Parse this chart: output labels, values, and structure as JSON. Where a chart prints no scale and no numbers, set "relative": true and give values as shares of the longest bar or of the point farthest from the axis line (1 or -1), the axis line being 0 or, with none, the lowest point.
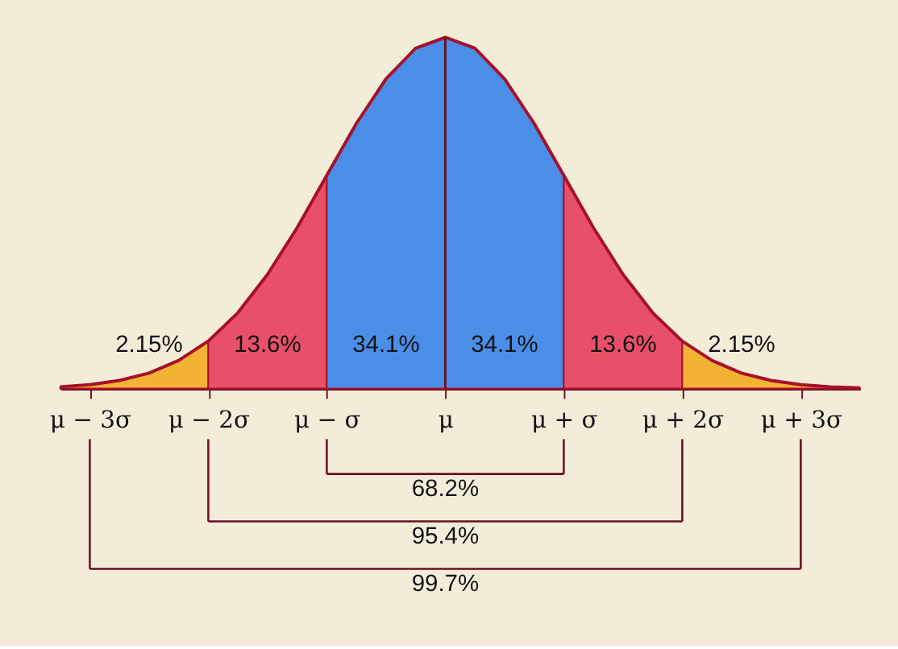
{
  "chart_data": {
    "type": "area",
    "relative": true,
    "xlim": [
      -3.25,
      3.5
    ],
    "xticks": [
      {
        "value": -3,
        "label": "μ − 3σ"
      },
      {
        "value": -2,
        "label": "μ − 2σ"
      },
      {
        "value": -1,
        "label": "μ − σ"
      },
      {
        "value": 0,
        "label": "μ"
      },
      {
        "value": 1,
        "label": "μ + σ"
      },
      {
        "value": 2,
        "label": "μ + 2σ"
      },
      {
        "value": 3,
        "label": "μ + 3σ"
      }
    ],
    "series": [
      {
        "color": "#f2b234",
        "x": [
          -3.25,
          -3,
          -2.75,
          -2.5,
          -2.25,
          -2
        ],
        "values": [
          0.005,
          0.011,
          0.023,
          0.044,
          0.08,
          0.135
        ]
      },
      {
        "color": "#e8506a",
        "x": [
          -2,
          -1.75,
          -1.5,
          -1.25,
          -1
        ],
        "values": [
          0.135,
          0.216,
          0.325,
          0.458,
          0.607
        ]
      },
      {
        "color": "#4a8ee8",
        "x": [
          -1,
          -0.75,
          -0.5,
          -0.25,
          0,
          0.25,
          0.5,
          0.75,
          1
        ],
        "values": [
          0.607,
          0.755,
          0.882,
          0.969,
          1,
          0.969,
          0.882,
          0.755,
          0.607
        ]
      },
      {
        "color": "#e8506a",
        "x": [
          1,
          1.25,
          1.5,
          1.75,
          2
        ],
        "values": [
          0.607,
          0.458,
          0.325,
          0.216,
          0.135
        ]
      },
      {
        "color": "#f2b234",
        "x": [
          2,
          2.25,
          2.5,
          2.75,
          3,
          3.25,
          3.5
        ],
        "values": [
          0.135,
          0.08,
          0.044,
          0.023,
          0.011,
          0.005,
          0.002
        ]
      },
      {
        "type": "line",
        "color": "#a8102a",
        "x": [
          -3.25,
          -3,
          -2.75,
          -2.5,
          -2.25,
          -2,
          -1.75,
          -1.5,
          -1.25,
          -1,
          -0.75,
          -0.5,
          -0.25,
          0,
          0.25,
          0.5,
          0.75,
          1,
          1.25,
          1.5,
          1.75,
          2,
          2.25,
          2.5,
          2.75,
          3,
          3.25,
          3.5
        ],
        "values": [
          0.005,
          0.011,
          0.023,
          0.044,
          0.08,
          0.135,
          0.216,
          0.325,
          0.458,
          0.607,
          0.755,
          0.882,
          0.969,
          1,
          0.969,
          0.882,
          0.755,
          0.607,
          0.458,
          0.325,
          0.216,
          0.135,
          0.08,
          0.044,
          0.023,
          0.011,
          0.005,
          0.002
        ]
      }
    ],
    "ref_lines": [
      {
        "axis": "x",
        "value": 0,
        "color": "#6a1020"
      }
    ],
    "annotations": [
      "2.15%",
      "13.6%",
      "34.1%",
      "34.1%",
      "13.6%",
      "2.15%",
      "68.2%",
      "95.4%",
      "99.7%"
    ],
    "grid": false
  }
}
